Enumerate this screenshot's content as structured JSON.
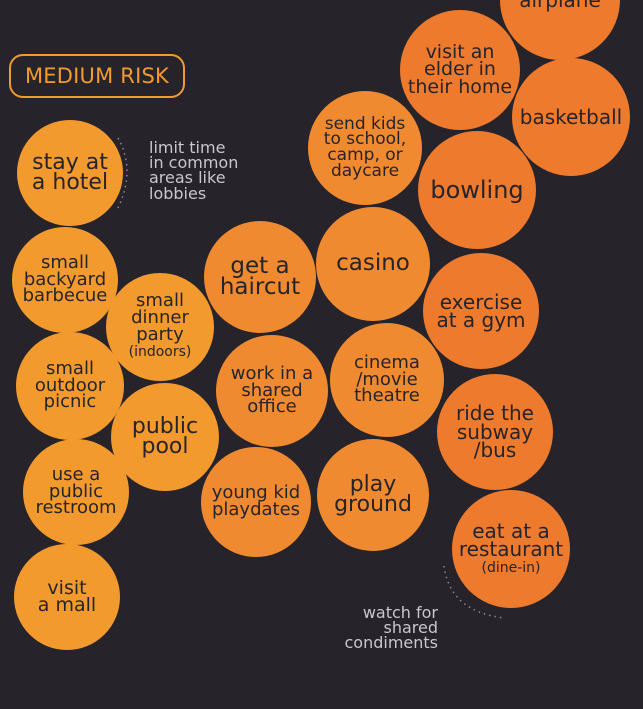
{
  "header": {
    "badge_label": "MEDIUM RISK"
  },
  "colors": {
    "background": "#26242a",
    "orange_light": "#f39a2e",
    "orange_mid": "#f08a30",
    "orange_dark": "#ee7a2d",
    "text_dark": "#26242a",
    "note_text": "#c9c6cc"
  },
  "bubbles": [
    {
      "id": "airplane",
      "text": "airplane",
      "color": "#ee7a2d"
    },
    {
      "id": "visit-elder",
      "text": "visit an\nelder in\ntheir home",
      "color": "#ee7a2d"
    },
    {
      "id": "basketball",
      "text": "basketball",
      "color": "#ee7a2d"
    },
    {
      "id": "send-kids",
      "text": "send kids\nto school,\ncamp, or\ndaycare",
      "color": "#f08a30"
    },
    {
      "id": "bowling",
      "text": "bowling",
      "color": "#ee7a2d"
    },
    {
      "id": "stay-hotel",
      "text": "stay at\na hotel",
      "color": "#f39a2e"
    },
    {
      "id": "backyard-bbq",
      "text": "small\nbackyard\nbarbecue",
      "color": "#f39a2e"
    },
    {
      "id": "get-haircut",
      "text": "get a\nhaircut",
      "color": "#f08a30"
    },
    {
      "id": "casino",
      "text": "casino",
      "color": "#f08a30"
    },
    {
      "id": "dinner-party",
      "text": "small\ndinner\nparty",
      "sub": "(indoors)",
      "color": "#f39a2e"
    },
    {
      "id": "exercise-gym",
      "text": "exercise\nat a gym",
      "color": "#ee7a2d"
    },
    {
      "id": "outdoor-picnic",
      "text": "small\noutdoor\npicnic",
      "color": "#f39a2e"
    },
    {
      "id": "shared-office",
      "text": "work in a\nshared\noffice",
      "color": "#f08a30"
    },
    {
      "id": "cinema",
      "text": "cinema\n/movie\ntheatre",
      "color": "#f08a30"
    },
    {
      "id": "public-pool",
      "text": "public\npool",
      "color": "#f39a2e"
    },
    {
      "id": "subway-bus",
      "text": "ride the\nsubway\n/bus",
      "color": "#ee7a2d"
    },
    {
      "id": "public-restroom",
      "text": "use a\npublic\nrestroom",
      "color": "#f39a2e"
    },
    {
      "id": "kid-playdates",
      "text": "young kid\nplaydates",
      "color": "#f08a30"
    },
    {
      "id": "playground",
      "text": "play\nground",
      "color": "#f08a30"
    },
    {
      "id": "restaurant",
      "text": "eat at a\nrestaurant",
      "sub": "(dine-in)",
      "color": "#ee7a2d"
    },
    {
      "id": "visit-mall",
      "text": "visit\na mall",
      "color": "#f39a2e"
    }
  ],
  "notes": [
    {
      "id": "hotel-note",
      "text": "limit time\nin common\nareas like\nlobbies"
    },
    {
      "id": "condiments-note",
      "text": "watch for\nshared\ncondiments"
    }
  ]
}
